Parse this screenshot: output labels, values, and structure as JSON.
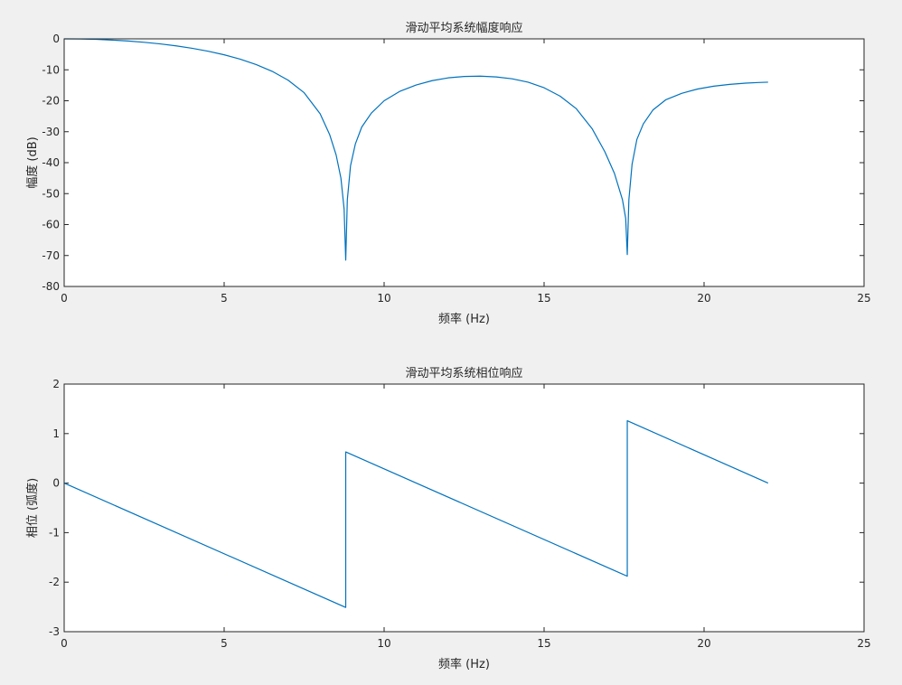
{
  "chart_data": [
    {
      "type": "line",
      "title": "滑动平均系统幅度响应",
      "xlabel": "频率 (Hz)",
      "ylabel": "幅度 (dB)",
      "xlim": [
        0,
        25
      ],
      "ylim": [
        -80,
        0
      ],
      "xticks": [
        0,
        5,
        10,
        15,
        20,
        25
      ],
      "yticks": [
        0,
        -10,
        -20,
        -30,
        -40,
        -50,
        -60,
        -70,
        -80
      ],
      "grid": false,
      "color": "#0072bd",
      "series": [
        {
          "x": [
            0,
            0.5,
            1,
            1.5,
            2,
            2.5,
            3,
            3.5,
            4,
            4.5,
            5,
            5.5,
            6,
            6.5,
            7,
            7.5,
            8,
            8.3,
            8.5,
            8.65,
            8.75,
            8.8,
            8.85,
            8.95,
            9.1,
            9.3,
            9.6,
            10,
            10.5,
            11,
            11.5,
            12,
            12.5,
            13,
            13.5,
            14,
            14.5,
            15,
            15.5,
            16,
            16.5,
            16.9,
            17.2,
            17.45,
            17.55,
            17.6,
            17.65,
            17.75,
            17.9,
            18.1,
            18.4,
            18.8,
            19.3,
            19.8,
            20.3,
            20.8,
            21.3,
            21.7,
            22
          ],
          "y": [
            0,
            -0.04,
            -0.17,
            -0.39,
            -0.7,
            -1.11,
            -1.63,
            -2.27,
            -3.05,
            -4.0,
            -5.15,
            -6.55,
            -8.29,
            -10.48,
            -13.35,
            -17.4,
            -24.2,
            -31.0,
            -37.5,
            -45.0,
            -55.0,
            -71.5,
            -52.0,
            -41.0,
            -34.0,
            -28.5,
            -24.0,
            -20.0,
            -16.9,
            -14.9,
            -13.5,
            -12.6,
            -12.15,
            -12.05,
            -12.3,
            -12.9,
            -14.0,
            -15.8,
            -18.5,
            -22.5,
            -29.0,
            -36.5,
            -43.5,
            -52.0,
            -58.0,
            -69.7,
            -52.0,
            -40.5,
            -32.5,
            -27.5,
            -23.0,
            -19.7,
            -17.6,
            -16.2,
            -15.3,
            -14.7,
            -14.3,
            -14.1,
            -14.0
          ]
        }
      ]
    },
    {
      "type": "line",
      "title": "滑动平均系统相位响应",
      "xlabel": "频率 (Hz)",
      "ylabel": "相位 (弧度)",
      "xlim": [
        0,
        25
      ],
      "ylim": [
        -3,
        2
      ],
      "xticks": [
        0,
        5,
        10,
        15,
        20,
        25
      ],
      "yticks": [
        2,
        1,
        0,
        -1,
        -2,
        -3
      ],
      "grid": false,
      "color": "#0072bd",
      "series": [
        {
          "x": [
            0,
            8.8,
            8.8,
            17.6,
            17.6,
            22
          ],
          "y": [
            0,
            -2.51,
            0.63,
            -1.88,
            1.26,
            0
          ]
        }
      ]
    }
  ]
}
